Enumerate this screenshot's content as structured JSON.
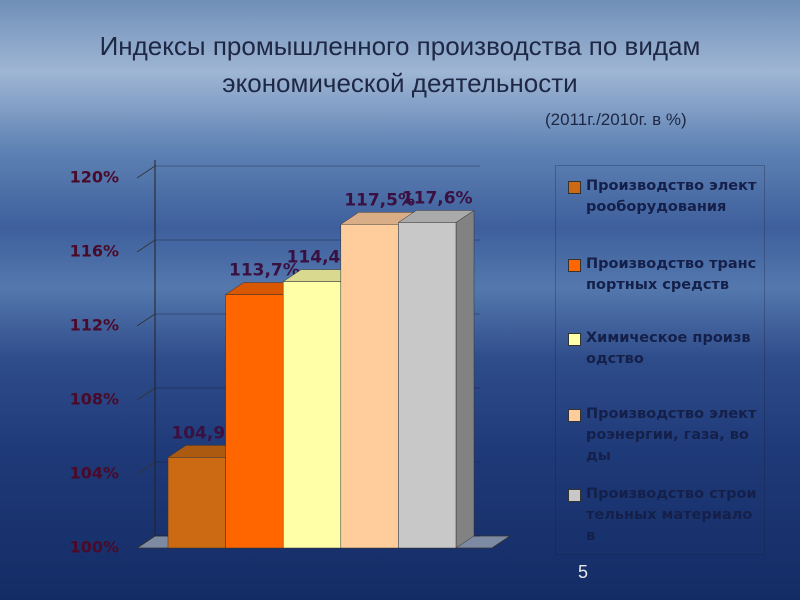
{
  "chart_data": {
    "type": "bar3d",
    "title": "Индексы промышленного производства по видам экономической деятельности",
    "subtitle": "(2011г./2010г. в %)",
    "categories": [
      "Производство электрооборудования",
      "Производство транспортных средств",
      "Химическое производство",
      "Производство электроэнергии, газа, воды",
      "Производство строительных материалов"
    ],
    "values": [
      104.9,
      113.7,
      114.4,
      117.5,
      117.6
    ],
    "value_labels": [
      "104,9%",
      "113,7%",
      "114,4%",
      "117,5%",
      "117,6%"
    ],
    "colors": [
      "#cc6a14",
      "#ff6600",
      "#ffffa8",
      "#ffcc9c",
      "#c8c8c8"
    ],
    "ylim": [
      100,
      120
    ],
    "yticks": [
      {
        "value": 100,
        "label": "100%"
      },
      {
        "value": 104,
        "label": "104%"
      },
      {
        "value": 108,
        "label": "108%"
      },
      {
        "value": 112,
        "label": "112%"
      },
      {
        "value": 116,
        "label": "116%"
      },
      {
        "value": 120,
        "label": "120%"
      }
    ],
    "grid": true
  },
  "page_number": "5"
}
